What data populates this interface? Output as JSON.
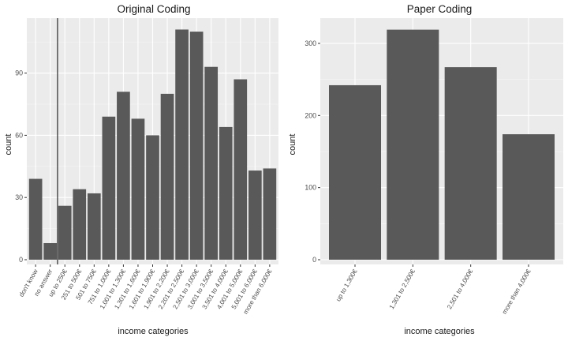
{
  "chart_data": [
    {
      "type": "bar",
      "title": "Original Coding",
      "xlabel": "income categories",
      "ylabel": "count",
      "categories": [
        "don't know",
        "no answer",
        "up to 250€",
        "251 to 500€",
        "501 to 750€",
        "751 to 1,000€",
        "1,001 to 1,300€",
        "1,301 to 1,600€",
        "1,601 to 1,900€",
        "1,901 to 2,200€",
        "2,201 to 2,500€",
        "2,501 to 3,000€",
        "3,001 to 3,500€",
        "3,501 to 4,000€",
        "4,001 to 5,000€",
        "5,001 to 6,000€",
        "more than 6,000€"
      ],
      "values": [
        39,
        8,
        26,
        34,
        32,
        69,
        81,
        68,
        60,
        80,
        111,
        110,
        93,
        64,
        87,
        43,
        44
      ],
      "yticks": [
        0,
        30,
        60,
        90
      ],
      "ylim": [
        0,
        116.5
      ],
      "vline_between": [
        "no answer",
        "up to 250€"
      ],
      "bar_color": "#595959",
      "panel_color": "#ebebeb",
      "grid": true
    },
    {
      "type": "bar",
      "title": "Paper Coding",
      "xlabel": "income categories",
      "ylabel": "count",
      "categories": [
        "up to 1,300€",
        "1,301 to 2,500€",
        "2,501 to 4,000€",
        "more than 4,000€"
      ],
      "values": [
        242,
        319,
        267,
        174
      ],
      "yticks": [
        0,
        100,
        200,
        300
      ],
      "ylim": [
        0,
        335
      ],
      "bar_color": "#595959",
      "panel_color": "#ebebeb",
      "grid": true
    }
  ]
}
